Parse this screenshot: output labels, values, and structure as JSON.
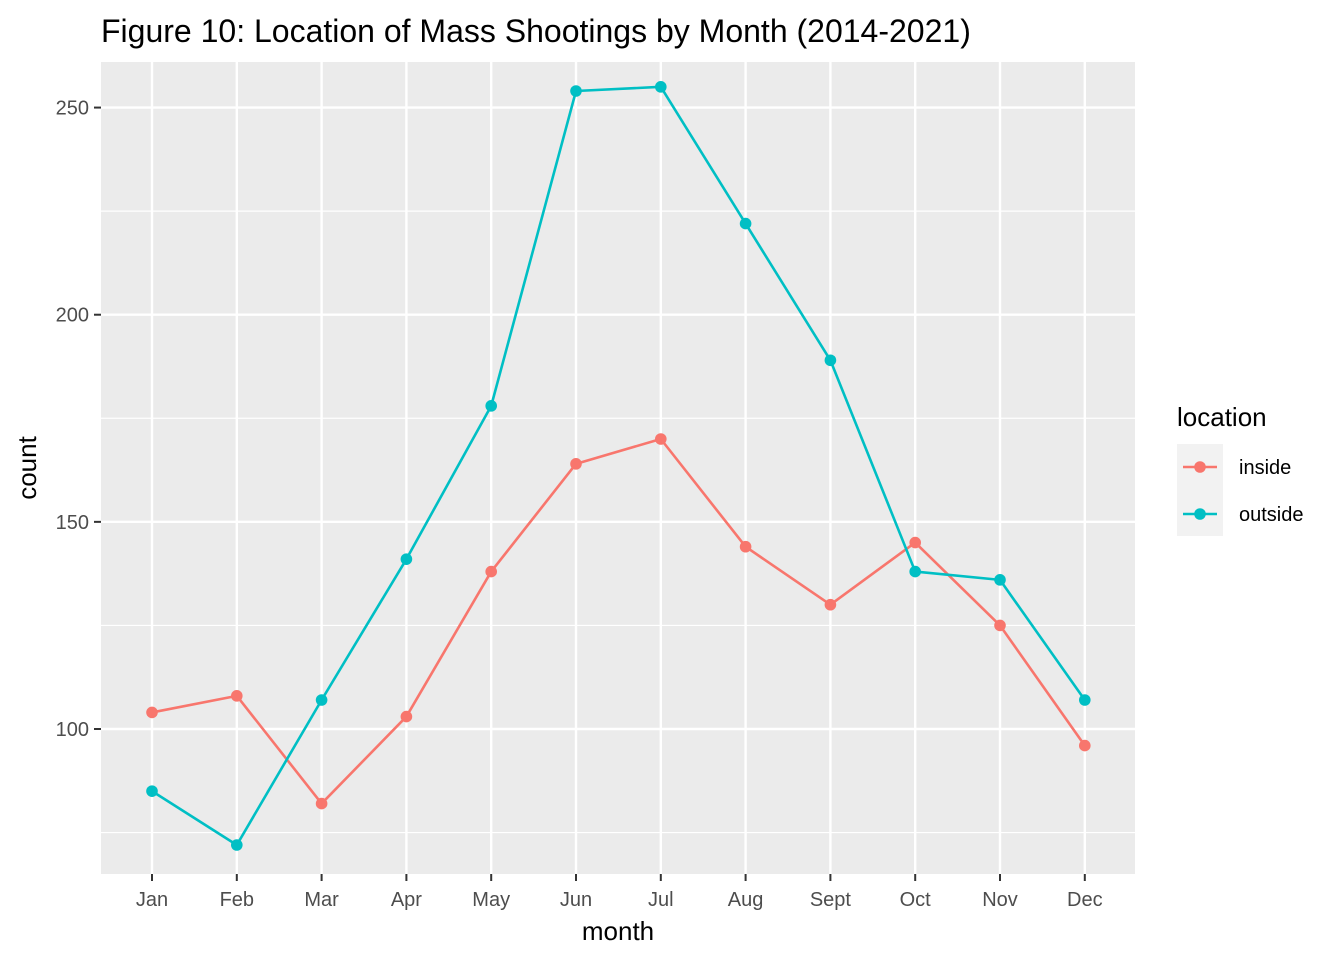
{
  "chart_data": {
    "type": "line",
    "title": "Figure 10: Location of Mass Shootings by Month (2014-2021)",
    "xlabel": "month",
    "ylabel": "count",
    "categories": [
      "Jan",
      "Feb",
      "Mar",
      "Apr",
      "May",
      "Jun",
      "Jul",
      "Aug",
      "Sept",
      "Oct",
      "Nov",
      "Dec"
    ],
    "y_ticks": [
      100,
      150,
      200,
      250
    ],
    "ylim": [
      65,
      261
    ],
    "grid": true,
    "legend": {
      "title": "location",
      "position": "right"
    },
    "series": [
      {
        "name": "inside",
        "color": "#F8766D",
        "values": [
          104,
          108,
          82,
          103,
          138,
          164,
          170,
          144,
          130,
          145,
          125,
          96
        ]
      },
      {
        "name": "outside",
        "color": "#00BFC4",
        "values": [
          85,
          72,
          107,
          141,
          178,
          254,
          255,
          222,
          189,
          138,
          136,
          107
        ]
      }
    ],
    "panel_background": "#EBEBEB",
    "grid_color": "#FFFFFF"
  }
}
